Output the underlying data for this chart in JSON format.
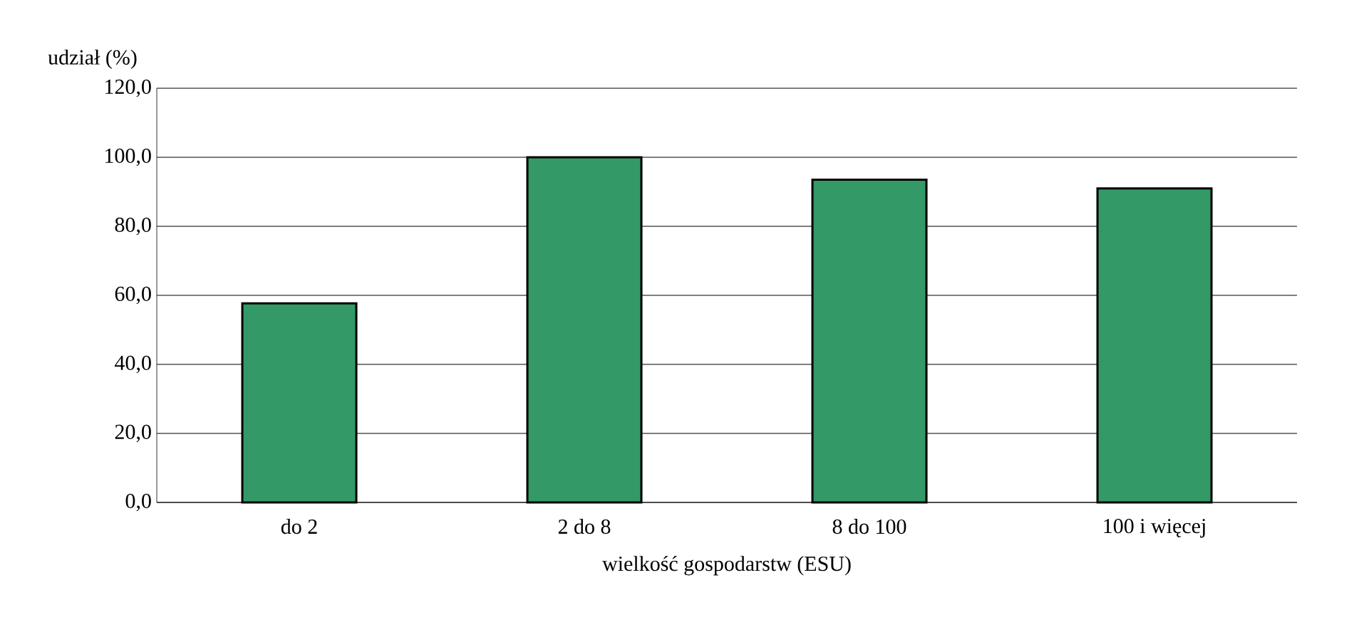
{
  "chart_data": {
    "type": "bar",
    "xlabel": "wielkość gospodarstw (ESU)",
    "ylabel": "udział (%)",
    "categories": [
      "do 2",
      "2 do 8",
      "8 do 100",
      "100 i więcej"
    ],
    "values": [
      57.7,
      100,
      93.5,
      91
    ],
    "color": "#339966",
    "ylim": [
      0,
      120
    ],
    "yticks": [
      {
        "value": 0,
        "label": "0,0"
      },
      {
        "value": 20,
        "label": "20,0"
      },
      {
        "value": 40,
        "label": "40,0"
      },
      {
        "value": 60,
        "label": "60,0"
      },
      {
        "value": 80,
        "label": "80,0"
      },
      {
        "value": 100,
        "label": "100,0"
      },
      {
        "value": 120,
        "label": "120,0"
      }
    ],
    "grid": "y"
  }
}
